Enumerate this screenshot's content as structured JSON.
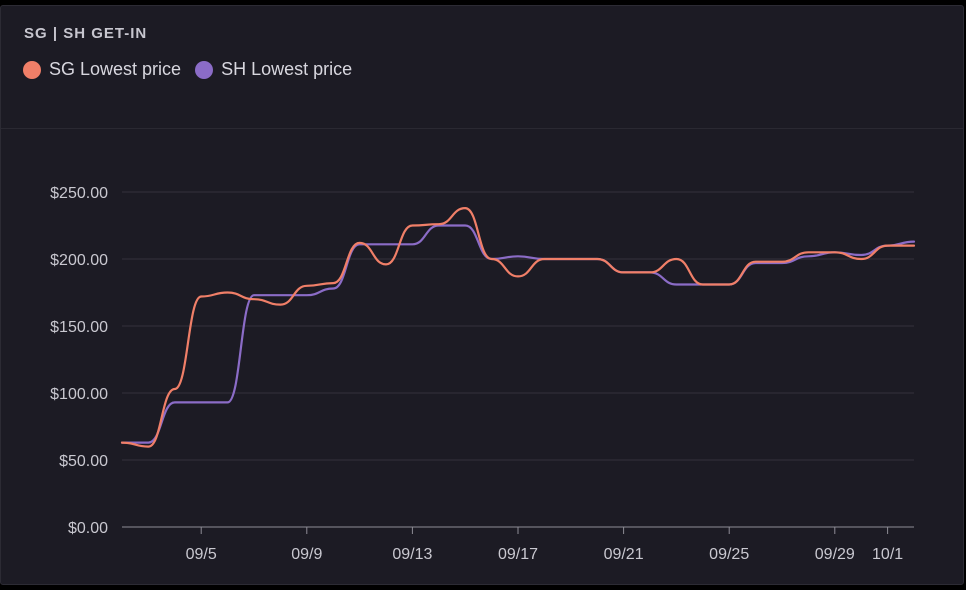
{
  "chart_data": {
    "type": "line",
    "title": "SG | SH GET-IN",
    "xlabel": "",
    "ylabel": "",
    "x_start": "09/02",
    "x_end": "10/02",
    "xticks": [
      "09/5",
      "09/9",
      "09/13",
      "09/17",
      "09/21",
      "09/25",
      "09/29",
      "10/1"
    ],
    "yticks": [
      "$0.00",
      "$50.00",
      "$100.00",
      "$150.00",
      "$200.00",
      "$250.00"
    ],
    "ytick_values": [
      0,
      50,
      100,
      150,
      200,
      250
    ],
    "ylim": [
      0,
      250
    ],
    "grid": true,
    "legend_position": "top-left",
    "series": [
      {
        "name": "SG Lowest price",
        "color": "#f07f68",
        "x": [
          "09/02",
          "09/03",
          "09/04",
          "09/05",
          "09/06",
          "09/07",
          "09/08",
          "09/09",
          "09/10",
          "09/11",
          "09/12",
          "09/13",
          "09/14",
          "09/15",
          "09/16",
          "09/17",
          "09/18",
          "09/19",
          "09/20",
          "09/21",
          "09/22",
          "09/23",
          "09/24",
          "09/25",
          "09/26",
          "09/27",
          "09/28",
          "09/29",
          "09/30",
          "10/01",
          "10/02"
        ],
        "values": [
          63,
          60,
          103,
          172,
          175,
          170,
          166,
          180,
          182,
          212,
          196,
          225,
          226,
          238,
          200,
          187,
          200,
          200,
          200,
          190,
          190,
          200,
          181,
          181,
          198,
          198,
          205,
          205,
          200,
          210,
          210
        ]
      },
      {
        "name": "SH Lowest price",
        "color": "#8b6cc7",
        "x": [
          "09/02",
          "09/03",
          "09/04",
          "09/05",
          "09/06",
          "09/07",
          "09/08",
          "09/09",
          "09/10",
          "09/11",
          "09/12",
          "09/13",
          "09/14",
          "09/15",
          "09/16",
          "09/17",
          "09/18",
          "09/19",
          "09/20",
          "09/21",
          "09/22",
          "09/23",
          "09/24",
          "09/25",
          "09/26",
          "09/27",
          "09/28",
          "09/29",
          "09/30",
          "10/01",
          "10/02"
        ],
        "values": [
          63,
          63,
          93,
          93,
          93,
          173,
          173,
          173,
          178,
          211,
          211,
          211,
          225,
          225,
          200,
          202,
          200,
          200,
          200,
          190,
          190,
          181,
          181,
          181,
          197,
          197,
          202,
          205,
          203,
          210,
          213
        ]
      }
    ]
  }
}
